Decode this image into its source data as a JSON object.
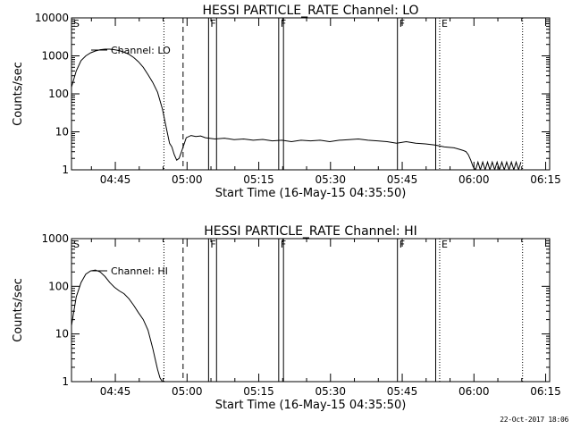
{
  "footer": {
    "date_stamp": "22-Oct-2017 18:06"
  },
  "chart_data": [
    {
      "type": "line",
      "title": "HESSI PARTICLE_RATE Channel: LO",
      "xlabel": "Start Time (16-May-15 04:35:50)",
      "ylabel": "Counts/sec",
      "yscale": "log",
      "ylim": [
        1,
        10000
      ],
      "xlim_minutes": [
        0,
        100
      ],
      "x_tick_labels": [
        "04:45",
        "05:00",
        "05:15",
        "05:30",
        "05:45",
        "06:00",
        "06:15"
      ],
      "y_tick_labels": [
        "1",
        "10",
        "100",
        "1000",
        "10000"
      ],
      "legend": {
        "label": "Channel: LO",
        "placement": "top-left"
      },
      "markers": [
        {
          "letter": "S",
          "time": "04:35:50",
          "style": "solid"
        },
        {
          "letter": "",
          "time": "04:55:10",
          "style": "dotted"
        },
        {
          "letter": "",
          "time": "04:59:10",
          "style": "dashed"
        },
        {
          "letter": "F",
          "time": "05:04:30",
          "style": "solid"
        },
        {
          "letter": "",
          "time": "05:06:10",
          "style": "solid"
        },
        {
          "letter": "F",
          "time": "05:19:10",
          "style": "solid"
        },
        {
          "letter": "",
          "time": "05:20:10",
          "style": "solid"
        },
        {
          "letter": "F",
          "time": "05:44:00",
          "style": "solid"
        },
        {
          "letter": "",
          "time": "05:52:00",
          "style": "solid"
        },
        {
          "letter": "E",
          "time": "05:52:50",
          "style": "dotted"
        },
        {
          "letter": "",
          "time": "06:10:10",
          "style": "dotted"
        }
      ],
      "series": [
        {
          "x": [
            0,
            1,
            2,
            3,
            4,
            5,
            6,
            7,
            8,
            9,
            10,
            11,
            12,
            13,
            14,
            15,
            16,
            17,
            18,
            19,
            20,
            20.5,
            21,
            21.5,
            22,
            22.5,
            23,
            24,
            25,
            26,
            27,
            28,
            30,
            32,
            34,
            36,
            38,
            40,
            42,
            44,
            46,
            48,
            50,
            52,
            54,
            56,
            58,
            60,
            62,
            64,
            66,
            68,
            70,
            72,
            74,
            76,
            78,
            80,
            81,
            82,
            82.5,
            83,
            83.5,
            84,
            84.5,
            85,
            85.5,
            86,
            86.5,
            87,
            87.5,
            88,
            88.5,
            89,
            89.5,
            90,
            90.5,
            91,
            91.5,
            92,
            92.5,
            93,
            93.5,
            94
          ],
          "y": [
            150,
            400,
            750,
            1000,
            1200,
            1350,
            1450,
            1500,
            1500,
            1450,
            1380,
            1250,
            1100,
            900,
            700,
            500,
            320,
            200,
            110,
            40,
            10,
            5,
            4,
            2.5,
            1.8,
            2,
            3,
            7,
            8,
            7.5,
            7.8,
            7,
            6.5,
            6.8,
            6.2,
            6.5,
            6,
            6.3,
            5.8,
            6,
            5.5,
            6,
            5.8,
            6,
            5.5,
            6,
            6.2,
            6.5,
            6,
            5.8,
            5.5,
            5,
            5.5,
            5,
            4.8,
            4.5,
            4,
            3.8,
            3.5,
            3.2,
            3,
            2.5,
            1.8,
            1.2,
            1,
            1.6,
            1,
            1.6,
            1,
            1.6,
            1,
            1.6,
            1,
            1.6,
            1,
            1.6,
            1,
            1.6,
            1,
            1.6,
            1,
            1.6,
            1,
            1.6
          ]
        }
      ]
    },
    {
      "type": "line",
      "title": "HESSI PARTICLE_RATE Channel: HI",
      "xlabel": "Start Time (16-May-15 04:35:50)",
      "ylabel": "Counts/sec",
      "yscale": "log",
      "ylim": [
        1,
        1000
      ],
      "xlim_minutes": [
        0,
        100
      ],
      "x_tick_labels": [
        "04:45",
        "05:00",
        "05:15",
        "05:30",
        "05:45",
        "06:00",
        "06:15"
      ],
      "y_tick_labels": [
        "1",
        "10",
        "100",
        "1000"
      ],
      "legend": {
        "label": "Channel: HI",
        "placement": "top-left"
      },
      "markers": [
        {
          "letter": "S",
          "time": "04:35:50",
          "style": "solid"
        },
        {
          "letter": "",
          "time": "04:55:10",
          "style": "dotted"
        },
        {
          "letter": "",
          "time": "04:59:10",
          "style": "dashed"
        },
        {
          "letter": "F",
          "time": "05:04:30",
          "style": "solid"
        },
        {
          "letter": "",
          "time": "05:06:10",
          "style": "solid"
        },
        {
          "letter": "F",
          "time": "05:19:10",
          "style": "solid"
        },
        {
          "letter": "",
          "time": "05:20:10",
          "style": "solid"
        },
        {
          "letter": "F",
          "time": "05:44:00",
          "style": "solid"
        },
        {
          "letter": "",
          "time": "05:52:00",
          "style": "solid"
        },
        {
          "letter": "E",
          "time": "05:52:50",
          "style": "dotted"
        },
        {
          "letter": "",
          "time": "06:10:10",
          "style": "dotted"
        }
      ],
      "series": [
        {
          "x": [
            0,
            1,
            2,
            3,
            4,
            5,
            6,
            7,
            8,
            9,
            10,
            11,
            12,
            13,
            14,
            15,
            16,
            17,
            17.5,
            18,
            18.5,
            19
          ],
          "y": [
            15,
            60,
            120,
            180,
            210,
            220,
            200,
            160,
            120,
            95,
            80,
            70,
            55,
            40,
            28,
            20,
            12,
            5,
            3,
            1.8,
            1.2,
            1
          ]
        }
      ]
    }
  ]
}
